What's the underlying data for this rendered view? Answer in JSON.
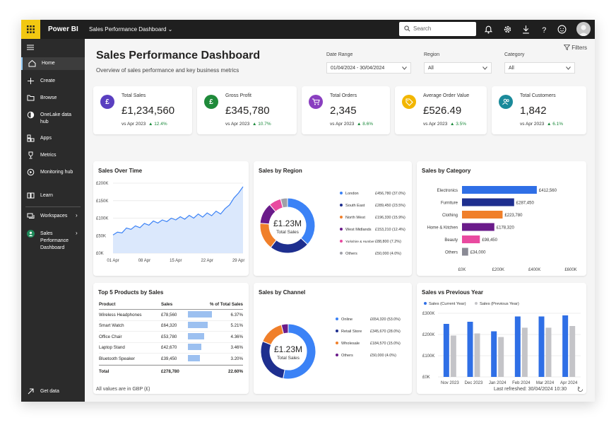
{
  "app": {
    "name": "Power BI",
    "report": "Sales Performance Dashboard",
    "search_placeholder": "Search"
  },
  "sidebar": {
    "items": [
      {
        "label": "Home"
      },
      {
        "label": "Create"
      },
      {
        "label": "Browse"
      },
      {
        "label": "OneLake data hub"
      },
      {
        "label": "Apps"
      },
      {
        "label": "Metrics"
      },
      {
        "label": "Monitoring hub"
      },
      {
        "label": "Learn"
      },
      {
        "label": "Workspaces"
      },
      {
        "label": "Sales Performance Dashboard"
      }
    ],
    "footer": "Get data"
  },
  "header": {
    "title": "Sales Performance Dashboard",
    "subtitle": "Overview of sales performance and key business metrics",
    "filters_label": "Filters"
  },
  "filters": {
    "date_label": "Date Range",
    "date_value": "01/04/2024 - 30/04/2024",
    "region_label": "Region",
    "region_value": "All",
    "category_label": "Category",
    "category_value": "All"
  },
  "kpis": [
    {
      "label": "Total Sales",
      "value": "£1,234,560",
      "compare": "vs Apr 2023",
      "delta": "▲ 12.4%",
      "color": "#5a3fc0",
      "glyph": "£"
    },
    {
      "label": "Gross Profit",
      "value": "£345,780",
      "compare": "vs Apr 2023",
      "delta": "▲ 10.7%",
      "color": "#1f8a3a",
      "glyph": "£"
    },
    {
      "label": "Total Orders",
      "value": "2,345",
      "compare": "vs Apr 2023",
      "delta": "▲ 8.6%",
      "color": "#8a3fc0",
      "glyph": "cart"
    },
    {
      "label": "Average Order Value",
      "value": "£526.49",
      "compare": "vs Apr 2023",
      "delta": "▲ 3.5%",
      "color": "#f2b600",
      "glyph": "tag"
    },
    {
      "label": "Total Customers",
      "value": "1,842",
      "compare": "vs Apr 2023",
      "delta": "▲ 6.1%",
      "color": "#1a8a9a",
      "glyph": "people"
    }
  ],
  "charts_titles": {
    "over_time": "Sales Over Time",
    "region": "Sales by Region",
    "category": "Sales by Category",
    "top_products": "Top 5 Products by Sales",
    "channel": "Sales by Channel",
    "vs_prev": "Sales vs Previous Year"
  },
  "chart_data": [
    {
      "type": "area",
      "title": "Sales Over Time",
      "x": [
        "01 Apr",
        "08 Apr",
        "15 Apr",
        "22 Apr",
        "29 Apr"
      ],
      "y_ticks": [
        "£200K",
        "£150K",
        "£100K",
        "£50K",
        "£0K"
      ],
      "ylim": [
        0,
        200000
      ],
      "points": [
        [
          1,
          52000
        ],
        [
          2,
          60000
        ],
        [
          3,
          58000
        ],
        [
          4,
          72000
        ],
        [
          5,
          68000
        ],
        [
          6,
          78000
        ],
        [
          7,
          73000
        ],
        [
          8,
          85000
        ],
        [
          9,
          80000
        ],
        [
          10,
          92000
        ],
        [
          11,
          86000
        ],
        [
          12,
          95000
        ],
        [
          13,
          90000
        ],
        [
          14,
          100000
        ],
        [
          15,
          95000
        ],
        [
          16,
          104000
        ],
        [
          17,
          97000
        ],
        [
          18,
          108000
        ],
        [
          19,
          100000
        ],
        [
          20,
          112000
        ],
        [
          21,
          103000
        ],
        [
          22,
          115000
        ],
        [
          23,
          107000
        ],
        [
          24,
          120000
        ],
        [
          25,
          112000
        ],
        [
          26,
          127000
        ],
        [
          27,
          138000
        ],
        [
          28,
          158000
        ],
        [
          29,
          172000
        ],
        [
          30,
          190000
        ]
      ]
    },
    {
      "type": "pie",
      "title": "Sales by Region",
      "center_value": "£1.23M",
      "center_label": "Total Sales",
      "slices": [
        {
          "name": "London",
          "value": 456780,
          "label": "£456,780 (37.0%)",
          "color": "#3b82f6"
        },
        {
          "name": "South East",
          "value": 289450,
          "label": "£289,450 (23.5%)",
          "color": "#1e2f8f"
        },
        {
          "name": "North West",
          "value": 196330,
          "label": "£196,330 (15.9%)",
          "color": "#f07f2a"
        },
        {
          "name": "West Midlands",
          "value": 153210,
          "label": "£153,210 (12.4%)",
          "color": "#6a1b8a"
        },
        {
          "name": "Yorkshire & Humber",
          "value": 88800,
          "label": "£88,800 (7.2%)",
          "color": "#e94aa0"
        },
        {
          "name": "Others",
          "value": 50000,
          "label": "£50,000 (4.0%)",
          "color": "#a0a0a8"
        }
      ]
    },
    {
      "type": "bar",
      "title": "Sales by Category",
      "categories": [
        "Electronics",
        "Furniture",
        "Clothing",
        "Home & Kitchen",
        "Beauty",
        "Others"
      ],
      "values": [
        412560,
        287450,
        223780,
        178320,
        98450,
        34000
      ],
      "labels": [
        "£412,560",
        "£287,450",
        "£223,780",
        "£178,320",
        "£98,450",
        "£34,000"
      ],
      "colors": [
        "#2f6fe6",
        "#1e2f8f",
        "#f07f2a",
        "#6a1b8a",
        "#e94aa0",
        "#8a8a95"
      ],
      "x_ticks": [
        "£0K",
        "£200K",
        "£400K",
        "£600K"
      ],
      "xlim": [
        0,
        600000
      ]
    },
    {
      "type": "table",
      "title": "Top 5 Products by Sales",
      "columns": [
        "Product",
        "Sales",
        "% of Total Sales"
      ],
      "rows": [
        {
          "product": "Wireless Headphones",
          "sales": "£78,560",
          "pct": "6.37%",
          "value": 6.37
        },
        {
          "product": "Smart Watch",
          "sales": "£64,320",
          "pct": "5.21%",
          "value": 5.21
        },
        {
          "product": "Office Chair",
          "sales": "£53,780",
          "pct": "4.36%",
          "value": 4.36
        },
        {
          "product": "Laptop Stand",
          "sales": "£42,670",
          "pct": "3.46%",
          "value": 3.46
        },
        {
          "product": "Bluetooth Speaker",
          "sales": "£39,450",
          "pct": "3.20%",
          "value": 3.2
        }
      ],
      "total": {
        "label": "Total",
        "sales": "£278,780",
        "pct": "22.60%"
      }
    },
    {
      "type": "pie",
      "title": "Sales by Channel",
      "center_value": "£1.23M",
      "center_label": "Total Sales",
      "slices": [
        {
          "name": "Online",
          "value": 654320,
          "label": "£654,320 (53.0%)",
          "color": "#3b82f6"
        },
        {
          "name": "Retail Store",
          "value": 345670,
          "label": "£345,670 (28.0%)",
          "color": "#1e2f8f"
        },
        {
          "name": "Wholesale",
          "value": 184570,
          "label": "£184,570 (15.0%)",
          "color": "#f07f2a"
        },
        {
          "name": "Others",
          "value": 50000,
          "label": "£50,000 (4.0%)",
          "color": "#6a1b8a"
        }
      ]
    },
    {
      "type": "bar",
      "title": "Sales vs Previous Year",
      "categories": [
        "Nov 2023",
        "Dec 2023",
        "Jan 2024",
        "Feb 2024",
        "Mar 2024",
        "Apr 2024"
      ],
      "series": [
        {
          "name": "Sales (Current Year)",
          "color": "#2f6fe6",
          "values": [
            250000,
            260000,
            215000,
            285000,
            285000,
            290000
          ]
        },
        {
          "name": "Sales (Previous Year)",
          "color": "#c4c4c8",
          "values": [
            195000,
            205000,
            188000,
            232000,
            232000,
            240000
          ]
        }
      ],
      "y_ticks": [
        "£300K",
        "£200K",
        "£100K",
        "£0K"
      ],
      "ylim": [
        0,
        300000
      ]
    }
  ],
  "footer": {
    "note": "All values are in GBP (£)",
    "refreshed": "Last refreshed: 30/04/2024 10:30"
  }
}
